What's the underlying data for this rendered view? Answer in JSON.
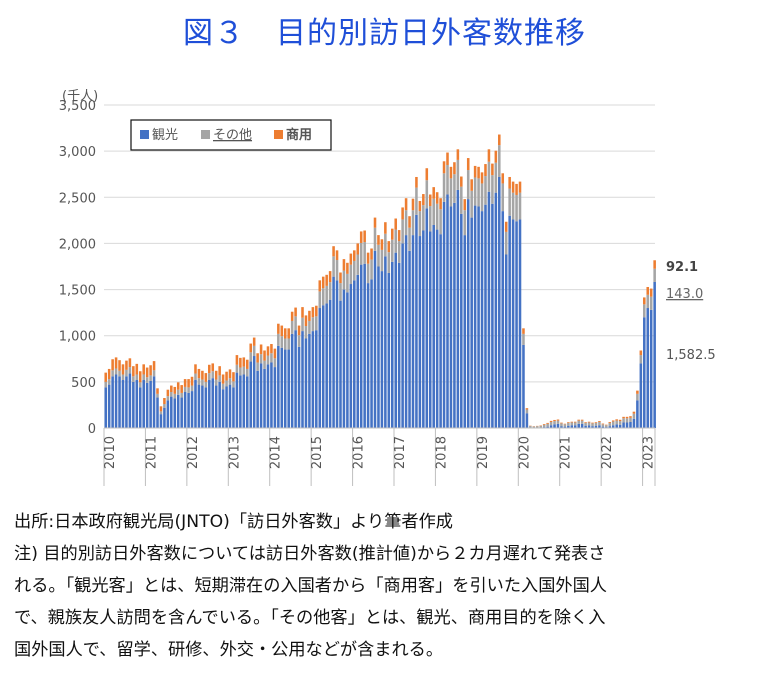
{
  "title": "図３　目的別訪日外客数推移",
  "notes": {
    "line1": "出所:日本政府観光局(JNTO)「訪日外客数」より筆者作成",
    "line2": "注) 目的別訪日外客数については訪日外客数(推計値)から２カ月遅れて発表さ",
    "line3": "れる。「観光客」とは、短期滞在の入国者から「商用客」を引いた入国外国人",
    "line4": "で、親族友人訪問を含んでいる。「その他客」とは、観光、商用目的を除く入",
    "line5": "国外国人で、留学、研修、外交・公用などが含まれる。"
  },
  "colors": {
    "tourism": "#4472c4",
    "other": "#a5a5a5",
    "business": "#ed7d31"
  },
  "chart_data": {
    "type": "bar",
    "stacked": true,
    "unit_label": "(千人)",
    "ylim": [
      0,
      3500
    ],
    "yticks": [
      "3,500",
      "3,000",
      "2,500",
      "2,000",
      "1,500",
      "1,000",
      "500",
      "0"
    ],
    "years": [
      "2010",
      "2011",
      "2012",
      "2013",
      "2014",
      "2015",
      "2016",
      "2017",
      "2018",
      "2019",
      "2020",
      "2021",
      "2022",
      "2023"
    ],
    "grid": true,
    "legend_position": "top-left",
    "series": [
      {
        "name": "観光",
        "color": "#4472c4",
        "yearly_values": [
          [
            440,
            470,
            560,
            580,
            560,
            520,
            560,
            590,
            500,
            520,
            440,
            520
          ],
          [
            490,
            510,
            560,
            330,
            150,
            220,
            300,
            340,
            320,
            360,
            330,
            390
          ],
          [
            380,
            400,
            520,
            470,
            460,
            440,
            520,
            540,
            460,
            500,
            420,
            450
          ],
          [
            470,
            440,
            600,
            570,
            580,
            560,
            720,
            780,
            620,
            700,
            640,
            690
          ],
          [
            710,
            660,
            890,
            870,
            850,
            850,
            1020,
            1060,
            880,
            1050,
            970,
            1020
          ],
          [
            1050,
            1060,
            1300,
            1330,
            1350,
            1390,
            1640,
            1600,
            1380,
            1500,
            1470,
            1560
          ],
          [
            1600,
            1660,
            1770,
            1780,
            1570,
            1610,
            1920,
            1750,
            1700,
            1860,
            1680,
            1800
          ],
          [
            1900,
            1790,
            2000,
            2090,
            1920,
            2090,
            2310,
            2080,
            2140,
            2380,
            2130,
            2200
          ],
          [
            2150,
            2100,
            2450,
            2530,
            2400,
            2440,
            2580,
            2320,
            2090,
            2480,
            2280,
            2410
          ],
          [
            2400,
            2350,
            2420,
            2560,
            2430,
            2550,
            2720,
            2350,
            1880,
            2300,
            2260,
            2240
          ],
          [
            2260,
            900,
            160,
            2,
            1,
            2,
            3,
            10,
            15,
            30,
            40,
            45
          ],
          [
            20,
            15,
            25,
            30,
            30,
            45,
            45,
            25,
            30,
            20,
            25,
            30
          ],
          [
            15,
            10,
            20,
            30,
            40,
            35,
            60,
            60,
            65,
            100,
            300,
            700
          ],
          [
            1200,
            1300,
            1280,
            1582.5
          ]
        ]
      },
      {
        "name": "その他",
        "color": "#a5a5a5",
        "yearly_values": [
          [
            60,
            60,
            65,
            65,
            60,
            60,
            70,
            70,
            60,
            60,
            55,
            60
          ],
          [
            60,
            60,
            65,
            40,
            30,
            40,
            45,
            50,
            50,
            55,
            50,
            55
          ],
          [
            60,
            60,
            70,
            70,
            65,
            60,
            75,
            75,
            65,
            70,
            60,
            65
          ],
          [
            70,
            65,
            85,
            85,
            85,
            80,
            100,
            110,
            90,
            100,
            90,
            95
          ],
          [
            100,
            95,
            130,
            125,
            120,
            120,
            140,
            150,
            125,
            145,
            135,
            140
          ],
          [
            150,
            150,
            180,
            185,
            190,
            190,
            220,
            220,
            190,
            205,
            200,
            210
          ],
          [
            210,
            220,
            235,
            235,
            210,
            215,
            250,
            235,
            230,
            245,
            225,
            240
          ],
          [
            250,
            235,
            260,
            270,
            250,
            270,
            295,
            270,
            275,
            305,
            275,
            285
          ],
          [
            280,
            270,
            310,
            320,
            305,
            310,
            325,
            295,
            270,
            315,
            290,
            305
          ],
          [
            305,
            300,
            310,
            325,
            310,
            325,
            345,
            300,
            245,
            295,
            290,
            285
          ],
          [
            290,
            120,
            40,
            20,
            15,
            18,
            20,
            25,
            30,
            35,
            35,
            35
          ],
          [
            30,
            25,
            30,
            30,
            30,
            35,
            35,
            30,
            30,
            30,
            30,
            35
          ],
          [
            25,
            20,
            35,
            40,
            40,
            40,
            45,
            45,
            45,
            55,
            70,
            90
          ],
          [
            140,
            143,
            143,
            143.0
          ]
        ]
      },
      {
        "name": "商用",
        "color": "#ed7d31",
        "yearly_values": [
          [
            100,
            110,
            120,
            120,
            115,
            110,
            100,
            95,
            110,
            115,
            120,
            110
          ],
          [
            105,
            110,
            100,
            60,
            55,
            65,
            70,
            70,
            75,
            80,
            85,
            85
          ],
          [
            90,
            95,
            100,
            100,
            95,
            95,
            90,
            85,
            95,
            100,
            100,
            95
          ],
          [
            95,
            100,
            105,
            105,
            100,
            100,
            95,
            90,
            100,
            105,
            110,
            100
          ],
          [
            100,
            105,
            110,
            115,
            110,
            110,
            100,
            95,
            105,
            115,
            115,
            110
          ],
          [
            110,
            115,
            120,
            125,
            120,
            120,
            110,
            105,
            115,
            125,
            120,
            120
          ],
          [
            115,
            120,
            125,
            125,
            120,
            120,
            110,
            105,
            115,
            125,
            120,
            120
          ],
          [
            120,
            120,
            130,
            130,
            125,
            125,
            115,
            110,
            120,
            130,
            125,
            125
          ],
          [
            125,
            120,
            130,
            135,
            125,
            130,
            115,
            110,
            120,
            130,
            125,
            125
          ],
          [
            125,
            120,
            130,
            135,
            125,
            130,
            115,
            110,
            110,
            125,
            120,
            120
          ],
          [
            120,
            60,
            15,
            3,
            3,
            3,
            5,
            8,
            10,
            12,
            12,
            12
          ],
          [
            8,
            6,
            8,
            8,
            8,
            10,
            10,
            8,
            8,
            8,
            8,
            10
          ],
          [
            8,
            6,
            10,
            12,
            14,
            14,
            16,
            16,
            18,
            22,
            35,
            50
          ],
          [
            75,
            85,
            88,
            92.1
          ]
        ]
      }
    ],
    "annotations": [
      {
        "text": "92.1",
        "series": "商用"
      },
      {
        "text": "143.0",
        "series": "その他"
      },
      {
        "text": "1,582.5",
        "series": "観光"
      }
    ]
  }
}
